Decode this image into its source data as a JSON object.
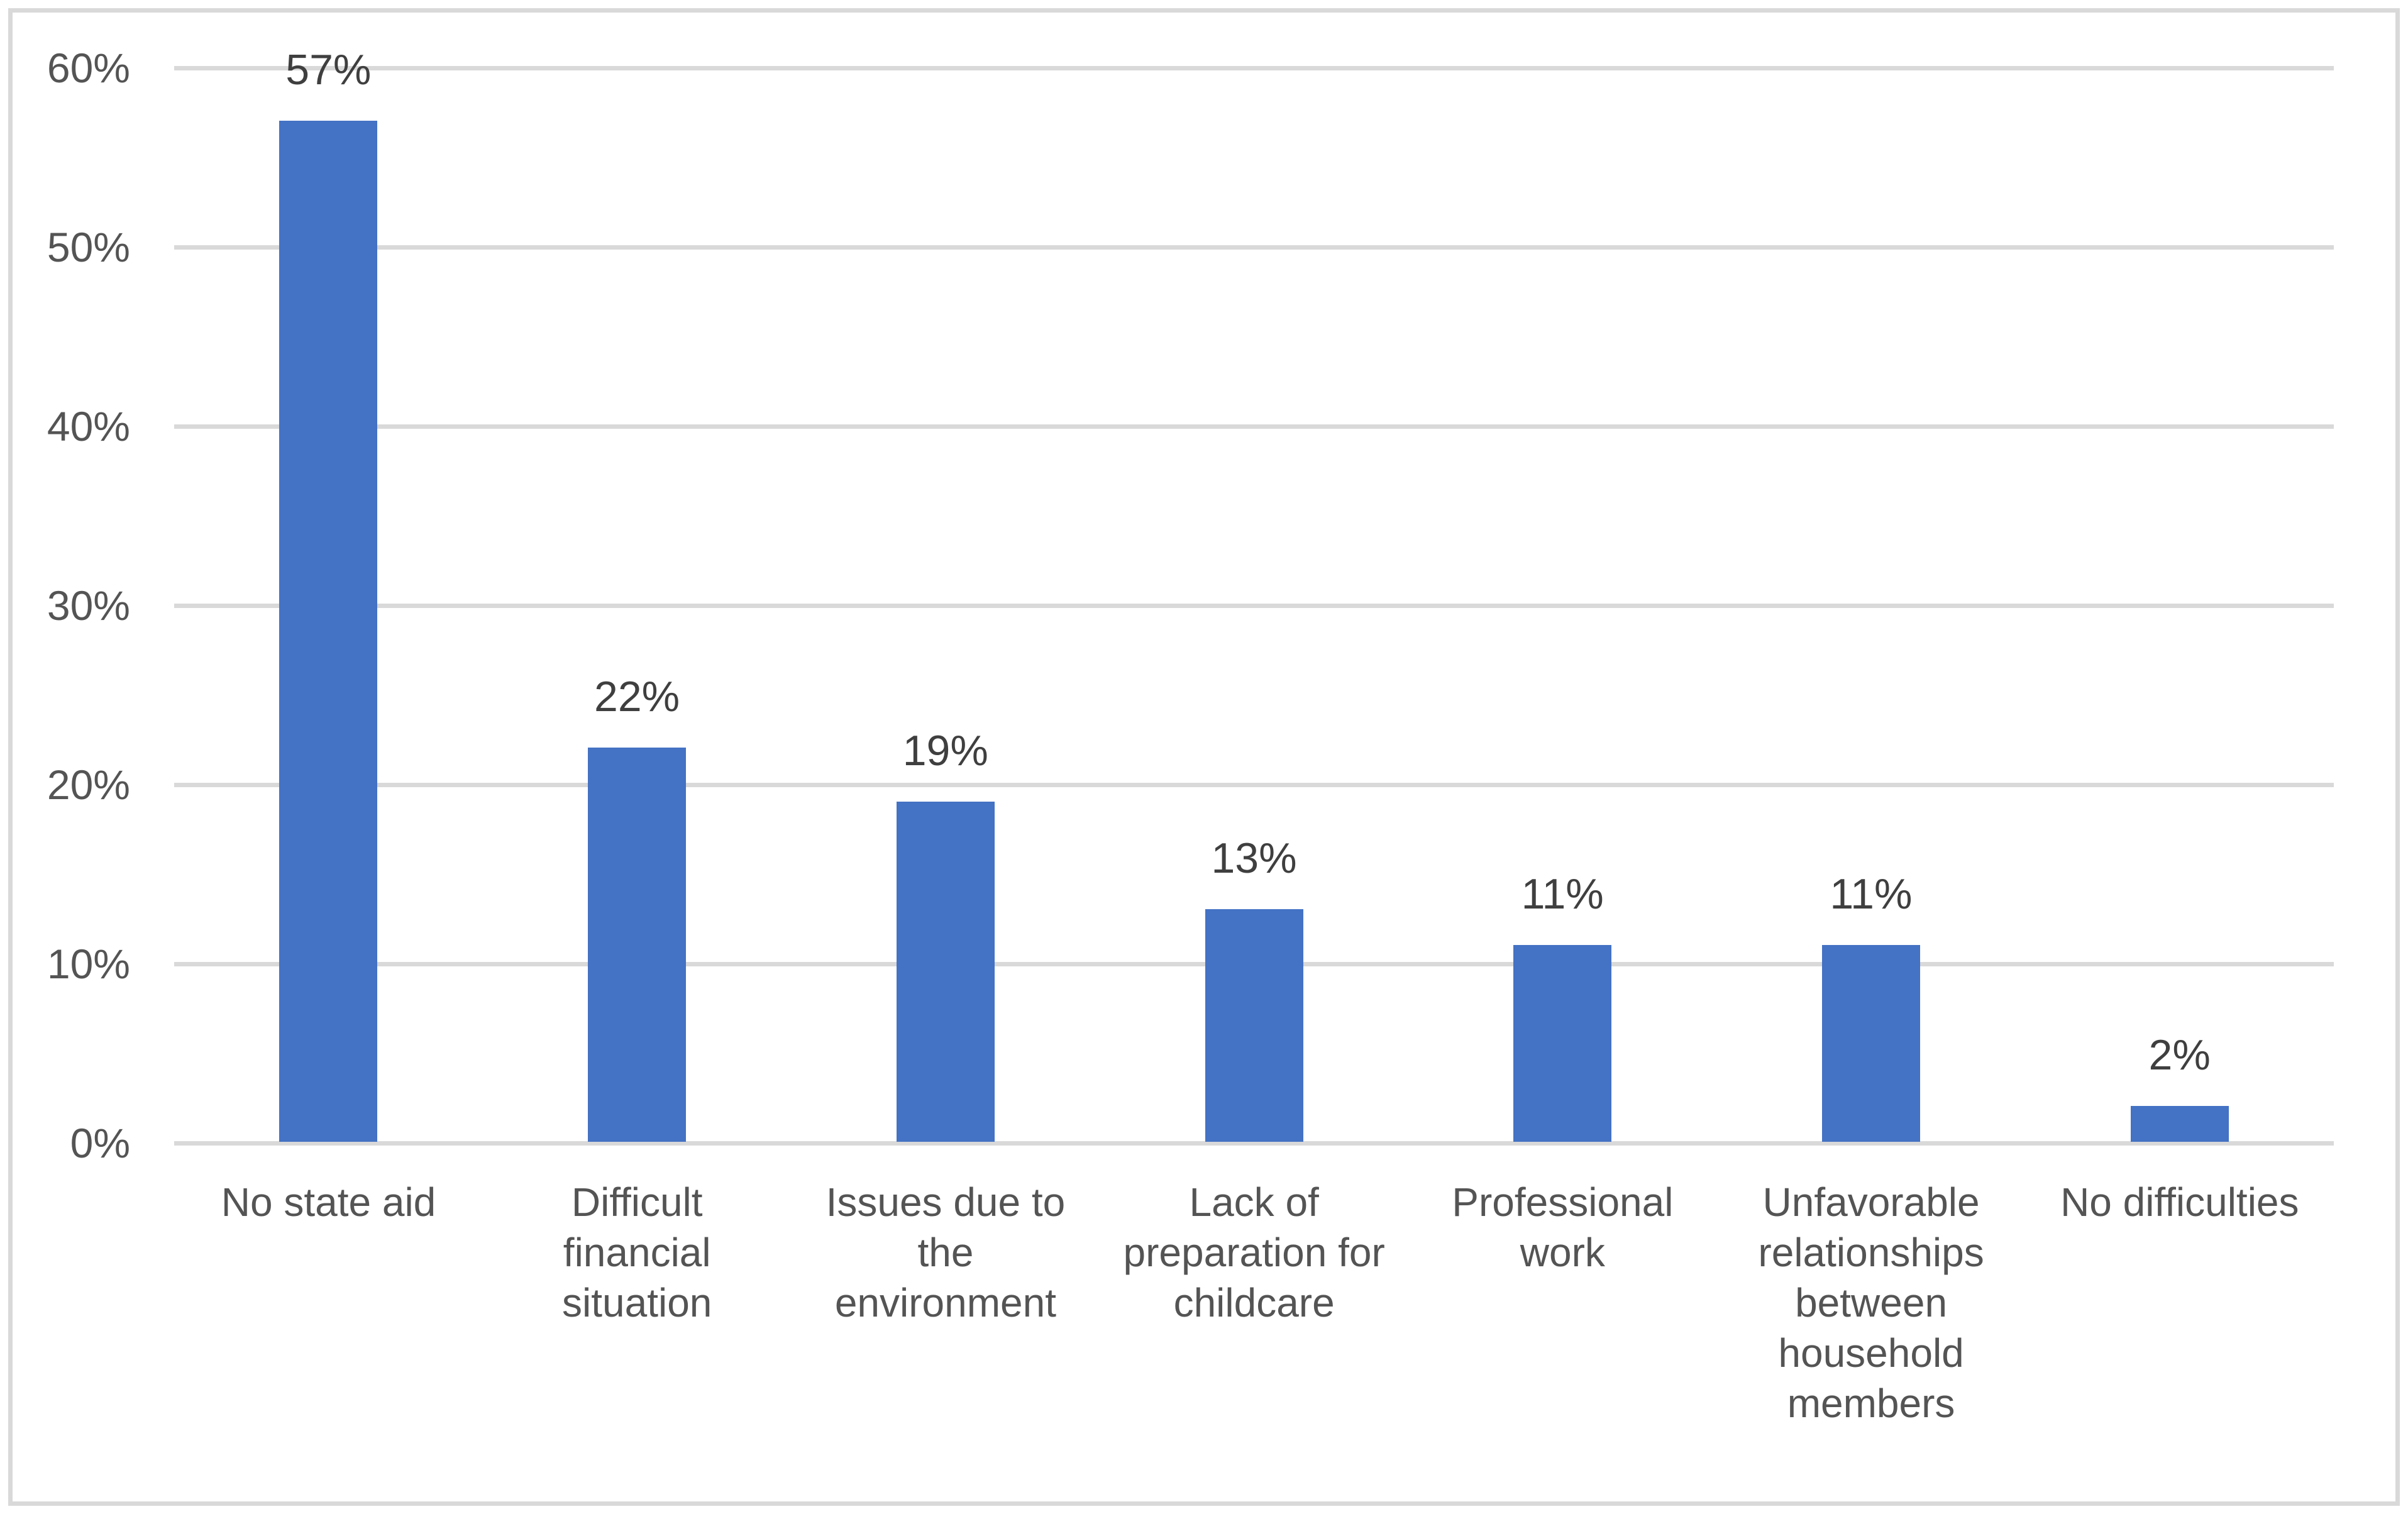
{
  "chart_data": {
    "type": "bar",
    "title": "",
    "xlabel": "",
    "ylabel": "",
    "categories": [
      "No state aid",
      "Difficult\nfinancial\nsituation",
      "Issues due to\nthe\nenvironment",
      "Lack of\npreparation for\nchildcare",
      "Professional\nwork",
      "Unfavorable\nrelationships\nbetween\nhousehold\nmembers",
      "No difficulties"
    ],
    "values": [
      57,
      22,
      19,
      13,
      11,
      11,
      2
    ],
    "data_labels": [
      "57%",
      "22%",
      "19%",
      "13%",
      "11%",
      "11%",
      "2%"
    ],
    "y_ticks": [
      {
        "value": 0,
        "label": "0%"
      },
      {
        "value": 10,
        "label": "10%"
      },
      {
        "value": 20,
        "label": "20%"
      },
      {
        "value": 30,
        "label": "30%"
      },
      {
        "value": 40,
        "label": "40%"
      },
      {
        "value": 50,
        "label": "50%"
      },
      {
        "value": 60,
        "label": "60%"
      }
    ],
    "ylim": [
      0,
      60
    ],
    "grid": "horizontal",
    "legend": "none",
    "colors": {
      "bar": "#4472C4",
      "gridline": "#D9D9D9",
      "axis_line": "#D9D9D9",
      "border": "#D9D9D9",
      "tick_text": "#545454",
      "category_text": "#545454",
      "data_label_text": "#3F3F3F"
    }
  }
}
